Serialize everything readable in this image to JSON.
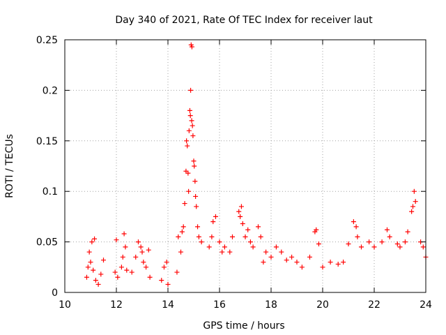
{
  "chart_data": {
    "type": "scatter",
    "title": "Day 340 of 2021, Rate Of TEC Index for receiver laut",
    "xlabel": "GPS time / hours",
    "ylabel": "ROTI / TECUs",
    "xlim": [
      10,
      24
    ],
    "ylim": [
      0,
      0.25
    ],
    "xticks": [
      "10",
      "12",
      "14",
      "16",
      "18",
      "20",
      "22",
      "24"
    ],
    "yticks": [
      "0",
      "0.05",
      "0.1",
      "0.15",
      "0.2",
      "0.25"
    ],
    "grid": true,
    "marker": "+",
    "series": [
      {
        "name": "ROTI",
        "color": "#ff0000",
        "points": [
          [
            10.85,
            0.015
          ],
          [
            10.9,
            0.025
          ],
          [
            10.95,
            0.04
          ],
          [
            11.0,
            0.03
          ],
          [
            11.05,
            0.05
          ],
          [
            11.1,
            0.022
          ],
          [
            11.15,
            0.053
          ],
          [
            11.2,
            0.012
          ],
          [
            11.3,
            0.008
          ],
          [
            11.4,
            0.018
          ],
          [
            11.5,
            0.032
          ],
          [
            11.95,
            0.02
          ],
          [
            12.0,
            0.052
          ],
          [
            12.05,
            0.015
          ],
          [
            12.2,
            0.025
          ],
          [
            12.25,
            0.035
          ],
          [
            12.3,
            0.058
          ],
          [
            12.35,
            0.045
          ],
          [
            12.4,
            0.022
          ],
          [
            12.6,
            0.02
          ],
          [
            12.75,
            0.035
          ],
          [
            12.85,
            0.05
          ],
          [
            12.95,
            0.045
          ],
          [
            13.0,
            0.04
          ],
          [
            13.05,
            0.03
          ],
          [
            13.15,
            0.025
          ],
          [
            13.25,
            0.042
          ],
          [
            13.3,
            0.015
          ],
          [
            13.75,
            0.012
          ],
          [
            13.85,
            0.025
          ],
          [
            13.95,
            0.03
          ],
          [
            14.0,
            0.008
          ],
          [
            14.35,
            0.02
          ],
          [
            14.4,
            0.055
          ],
          [
            14.5,
            0.04
          ],
          [
            14.55,
            0.06
          ],
          [
            14.6,
            0.065
          ],
          [
            14.65,
            0.088
          ],
          [
            14.7,
            0.12
          ],
          [
            14.72,
            0.15
          ],
          [
            14.75,
            0.145
          ],
          [
            14.78,
            0.118
          ],
          [
            14.8,
            0.1
          ],
          [
            14.82,
            0.16
          ],
          [
            14.85,
            0.18
          ],
          [
            14.87,
            0.175
          ],
          [
            14.88,
            0.2
          ],
          [
            14.9,
            0.245
          ],
          [
            14.92,
            0.17
          ],
          [
            14.93,
            0.243
          ],
          [
            14.95,
            0.165
          ],
          [
            14.97,
            0.155
          ],
          [
            15.0,
            0.13
          ],
          [
            15.02,
            0.125
          ],
          [
            15.05,
            0.11
          ],
          [
            15.07,
            0.095
          ],
          [
            15.1,
            0.085
          ],
          [
            15.15,
            0.065
          ],
          [
            15.2,
            0.055
          ],
          [
            15.3,
            0.05
          ],
          [
            15.6,
            0.045
          ],
          [
            15.7,
            0.055
          ],
          [
            15.75,
            0.07
          ],
          [
            15.85,
            0.075
          ],
          [
            16.0,
            0.05
          ],
          [
            16.1,
            0.04
          ],
          [
            16.2,
            0.045
          ],
          [
            16.4,
            0.04
          ],
          [
            16.5,
            0.055
          ],
          [
            16.75,
            0.08
          ],
          [
            16.8,
            0.075
          ],
          [
            16.85,
            0.085
          ],
          [
            16.9,
            0.068
          ],
          [
            17.0,
            0.055
          ],
          [
            17.1,
            0.062
          ],
          [
            17.2,
            0.05
          ],
          [
            17.3,
            0.045
          ],
          [
            17.5,
            0.065
          ],
          [
            17.6,
            0.055
          ],
          [
            17.7,
            0.03
          ],
          [
            17.8,
            0.04
          ],
          [
            18.0,
            0.035
          ],
          [
            18.2,
            0.045
          ],
          [
            18.4,
            0.04
          ],
          [
            18.6,
            0.032
          ],
          [
            18.8,
            0.035
          ],
          [
            19.0,
            0.03
          ],
          [
            19.2,
            0.025
          ],
          [
            19.5,
            0.035
          ],
          [
            19.7,
            0.06
          ],
          [
            19.75,
            0.062
          ],
          [
            19.85,
            0.048
          ],
          [
            20.0,
            0.025
          ],
          [
            20.3,
            0.03
          ],
          [
            20.6,
            0.028
          ],
          [
            20.8,
            0.03
          ],
          [
            21.0,
            0.048
          ],
          [
            21.2,
            0.07
          ],
          [
            21.3,
            0.065
          ],
          [
            21.35,
            0.055
          ],
          [
            21.5,
            0.045
          ],
          [
            21.8,
            0.05
          ],
          [
            22.0,
            0.045
          ],
          [
            22.3,
            0.05
          ],
          [
            22.5,
            0.062
          ],
          [
            22.6,
            0.055
          ],
          [
            22.9,
            0.048
          ],
          [
            23.0,
            0.045
          ],
          [
            23.2,
            0.05
          ],
          [
            23.3,
            0.06
          ],
          [
            23.45,
            0.08
          ],
          [
            23.5,
            0.085
          ],
          [
            23.55,
            0.1
          ],
          [
            23.6,
            0.09
          ],
          [
            23.8,
            0.05
          ],
          [
            23.9,
            0.045
          ],
          [
            24.0,
            0.035
          ]
        ]
      }
    ]
  }
}
